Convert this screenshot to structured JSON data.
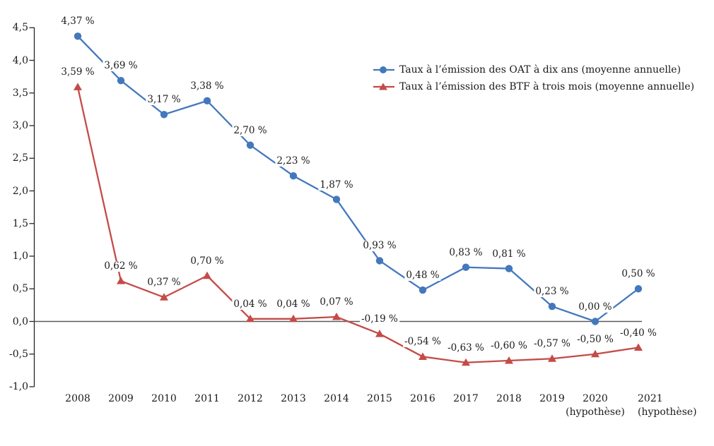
{
  "chart_data": {
    "type": "line",
    "title": "",
    "categories": [
      "2008",
      "2009",
      "2010",
      "2011",
      "2012",
      "2013",
      "2014",
      "2015",
      "2016",
      "2017",
      "2018",
      "2019",
      "2020",
      "2021"
    ],
    "category_notes": [
      "",
      "",
      "",
      "",
      "",
      "",
      "",
      "",
      "",
      "",
      "",
      "",
      "(hypothèse)",
      "(hypothèse)"
    ],
    "series": [
      {
        "id": "oat",
        "name": "Taux à l’émission des OAT à dix ans (moyenne annuelle)",
        "marker": "circle",
        "color": "#4478BD",
        "values": [
          4.37,
          3.69,
          3.17,
          3.38,
          2.7,
          2.23,
          1.87,
          0.93,
          0.48,
          0.83,
          0.81,
          0.23,
          0.0,
          0.5
        ],
        "labels": [
          "4,37 %",
          "3,69 %",
          "3,17 %",
          "3,38 %",
          "2,70 %",
          "2,23 %",
          "1,87 %",
          "0,93 %",
          "0,48 %",
          "0,83 %",
          "0,81 %",
          "0,23 %",
          "0,00 %",
          "0,50 %"
        ]
      },
      {
        "id": "btf",
        "name": "Taux à l’émission des BTF à trois mois (moyenne annuelle)",
        "marker": "triangle",
        "color": "#C44B47",
        "values": [
          3.59,
          0.62,
          0.37,
          0.7,
          0.04,
          0.04,
          0.07,
          -0.19,
          -0.54,
          -0.63,
          -0.6,
          -0.57,
          -0.5,
          -0.4
        ],
        "labels": [
          "3,59 %",
          "0,62 %",
          "0,37 %",
          "0,70 %",
          "0,04 %",
          "0,04 %",
          "0,07 %",
          "-0,19 %",
          "-0,54 %",
          "-0,63 %",
          "-0,60 %",
          "-0,57 %",
          "-0,50 %",
          "-0,40 %"
        ]
      }
    ],
    "y_ticks": [
      "4,5",
      "4,0",
      "3,5",
      "3,0",
      "2,5",
      "2,0",
      "1,5",
      "1,0",
      "0,5",
      "0,0",
      "-0,5",
      "-1,0"
    ],
    "y_tick_values": [
      4.5,
      4.0,
      3.5,
      3.0,
      2.5,
      2.0,
      1.5,
      1.0,
      0.5,
      0.0,
      -0.5,
      -1.0
    ],
    "ylim": [
      -1.0,
      4.5
    ],
    "xlabel": "",
    "ylabel": "",
    "grid": "zero-line-only",
    "legend_position": "upper-right",
    "axis_color": "#262626",
    "zero_line_color": "#5a5a5a",
    "text_color": "#1a1a1a"
  }
}
